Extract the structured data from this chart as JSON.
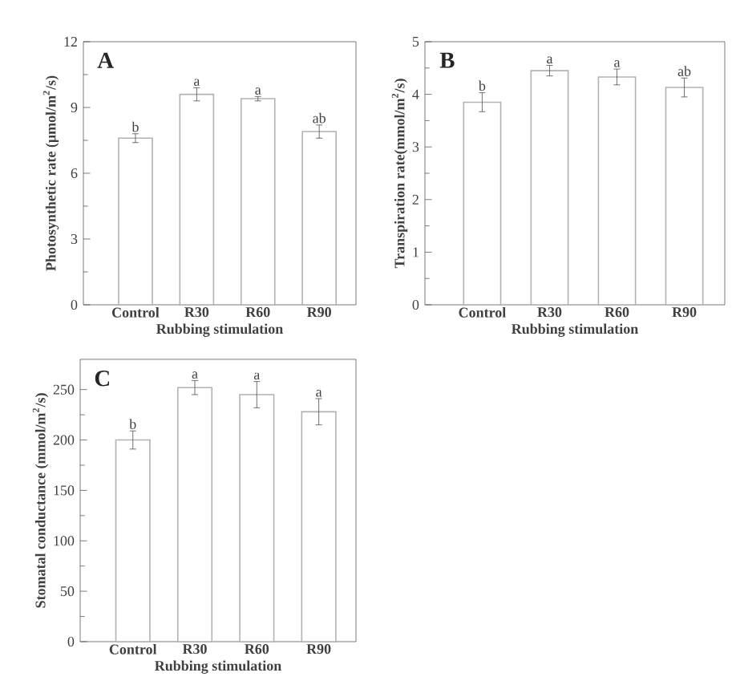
{
  "chart_data": [
    {
      "type": "bar",
      "title": "A",
      "xlabel": "Rubbing stimulation",
      "ylabel": "Photosynthetic rate (μmol/m$^{2}$/s)",
      "categories": [
        "Control",
        "R30",
        "R60",
        "R90"
      ],
      "values": [
        7.6,
        9.6,
        9.4,
        7.9
      ],
      "errors": [
        0.2,
        0.3,
        0.1,
        0.3
      ],
      "color": "#ffffff",
      "ylim": [
        0,
        12
      ],
      "yticks": [
        0,
        3,
        6,
        9,
        12
      ],
      "annotations": [
        {
          "text": "b",
          "x": "Control",
          "y": 7.8
        },
        {
          "text": "a",
          "x": "R30",
          "y": 9.9
        },
        {
          "text": "a",
          "x": "R60",
          "y": 9.5
        },
        {
          "text": "ab",
          "x": "R90",
          "y": 8.2
        }
      ]
    },
    {
      "type": "bar",
      "title": "B",
      "xlabel": "Rubbing stimulation",
      "ylabel": "Transpiration rate(mmol/m$^{2}$/s)",
      "categories": [
        "Control",
        "R30",
        "R60",
        "R90"
      ],
      "values": [
        3.85,
        4.45,
        4.33,
        4.13
      ],
      "errors": [
        0.18,
        0.1,
        0.15,
        0.18
      ],
      "color": "#ffffff",
      "ylim": [
        0,
        5
      ],
      "yticks": [
        0,
        1,
        2,
        3,
        4,
        5
      ],
      "annotations": [
        {
          "text": "b",
          "x": "Control",
          "y": 4.03
        },
        {
          "text": "a",
          "x": "R30",
          "y": 4.55
        },
        {
          "text": "a",
          "x": "R60",
          "y": 4.48
        },
        {
          "text": "ab",
          "x": "R90",
          "y": 4.31
        }
      ]
    },
    {
      "type": "bar",
      "title": "C",
      "xlabel": "Rubbing stimulation",
      "ylabel": "Stomatal conductance (mmol/m$^{2}$/s)",
      "categories": [
        "Control",
        "R30",
        "R60",
        "R90"
      ],
      "values": [
        200,
        252,
        245,
        228
      ],
      "errors": [
        9,
        7,
        13,
        13
      ],
      "color": "#ffffff",
      "ylim": [
        0,
        280
      ],
      "yticks": [
        0,
        50,
        100,
        150,
        200,
        250
      ],
      "annotations": [
        {
          "text": "b",
          "x": "Control",
          "y": 209
        },
        {
          "text": "a",
          "x": "R30",
          "y": 259
        },
        {
          "text": "a",
          "x": "R60",
          "y": 258
        },
        {
          "text": "a",
          "x": "R90",
          "y": 241
        }
      ]
    }
  ]
}
